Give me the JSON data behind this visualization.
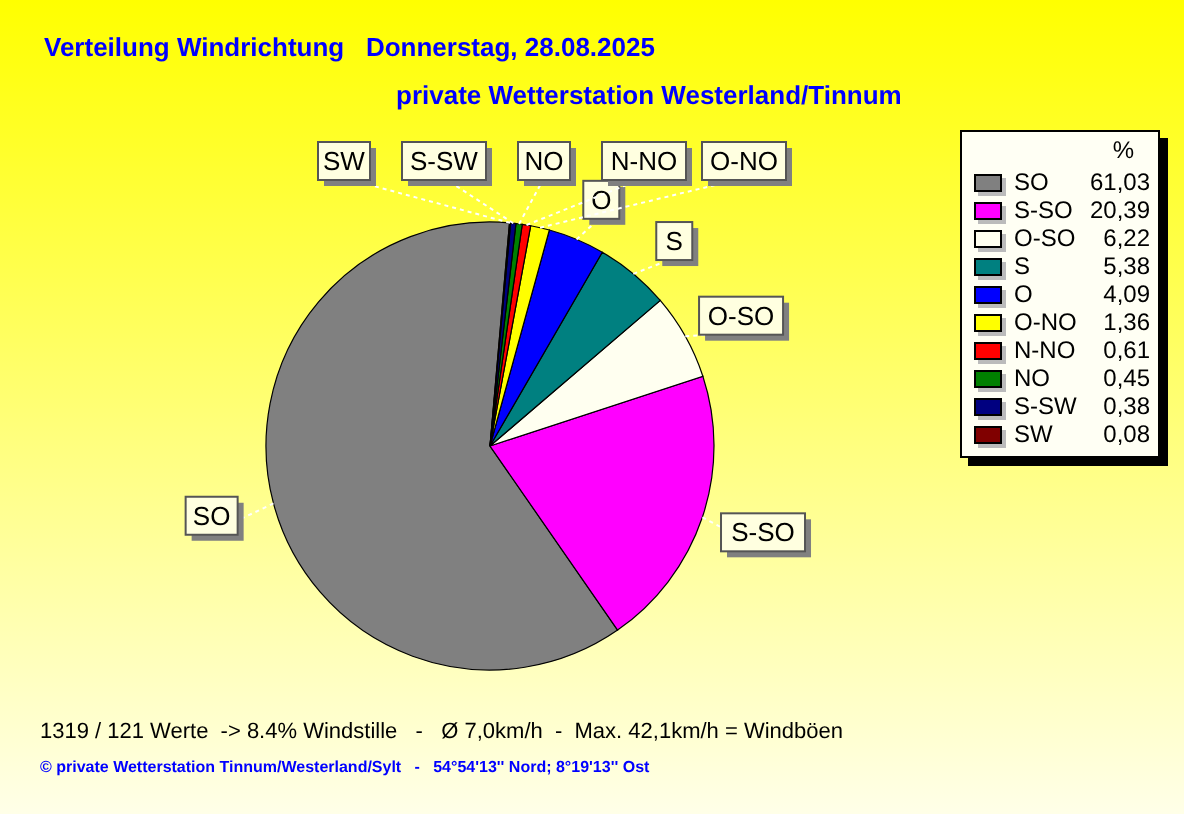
{
  "chart_data": {
    "type": "pie",
    "title": "Verteilung Windrichtung   Donnerstag, 28.08.2025",
    "subtitle": "private Wetterstation Westerland/Tinnum",
    "legend_title": "%",
    "categories": [
      "SO",
      "S-SO",
      "O-SO",
      "S",
      "O",
      "O-NO",
      "N-NO",
      "NO",
      "S-SW",
      "SW"
    ],
    "values": [
      61.03,
      20.39,
      6.22,
      5.38,
      4.09,
      1.36,
      0.61,
      0.45,
      0.38,
      0.08
    ],
    "value_labels": [
      "61,03",
      "20,39",
      "6,22",
      "5,38",
      "4,09",
      "1,36",
      "0,61",
      "0,45",
      "0,38",
      "0,08"
    ],
    "colors": [
      "#808080",
      "#ff00ff",
      "#fffff0",
      "#008080",
      "#0000ff",
      "#ffff00",
      "#ff0000",
      "#008000",
      "#000080",
      "#800000"
    ],
    "legend": "right",
    "annotations": [
      "1319 / 121 Werte  -> 8.4% Windstille   -   Ø 7,0km/h  -  Max. 42,1km/h = Windböen",
      "© private Wetterstation Tinnum/Westerland/Sylt   -   54°54'13'' Nord; 8°19'13'' Ost"
    ]
  }
}
